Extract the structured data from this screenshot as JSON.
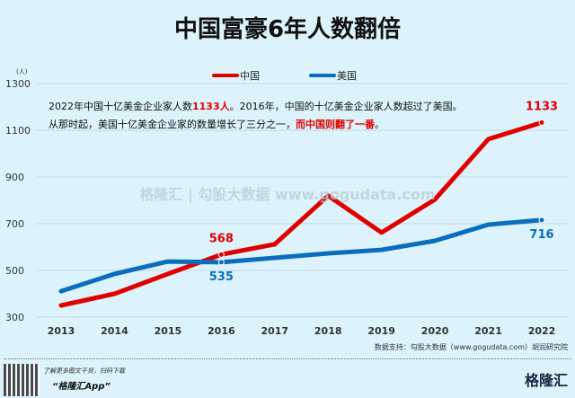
{
  "chart_data": {
    "type": "line",
    "title": "中国富豪6年人数翻倍",
    "yunit": "(人)",
    "x": [
      2013,
      2014,
      2015,
      2016,
      2017,
      2018,
      2019,
      2020,
      2021,
      2022
    ],
    "ylim": [
      300,
      1300
    ],
    "yticks": [
      300,
      500,
      700,
      900,
      1100,
      1300
    ],
    "grid": true,
    "legend_position": "top-center",
    "series": [
      {
        "name": "中国",
        "color": "#e00000",
        "values": [
          350,
          400,
          485,
          568,
          612,
          820,
          662,
          804,
          1062,
          1133
        ]
      },
      {
        "name": "美国",
        "color": "#0a6ebd",
        "values": [
          411,
          485,
          538,
          535,
          554,
          573,
          588,
          627,
          696,
          716
        ]
      }
    ],
    "data_labels": [
      {
        "series": "中国",
        "x": 2016,
        "text": "568"
      },
      {
        "series": "中国",
        "x": 2022,
        "text": "1133"
      },
      {
        "series": "美国",
        "x": 2016,
        "text": "535"
      },
      {
        "series": "美国",
        "x": 2022,
        "text": "716"
      }
    ]
  },
  "note": {
    "line1_a": "2022年中国十亿美金企业家人数",
    "line1_b": "1133人",
    "line1_c": "。2016年，中国的十亿美金企业家人数超过了美国。",
    "line2_a": "从那时起，美国十亿美金企业家的数量增长了三分之一，",
    "line2_b": "而中国则翻了一番",
    "line2_c": "。"
  },
  "watermark": "格隆汇 | 勾股大数据 www.gogudata.com",
  "source": "数据支持：勾股大数据（www.gogudata.com）胡润研究院",
  "footer": {
    "text1": "了解更多图文干货，扫码下载",
    "text2": "“格隆汇App”",
    "logo": "格隆汇"
  }
}
